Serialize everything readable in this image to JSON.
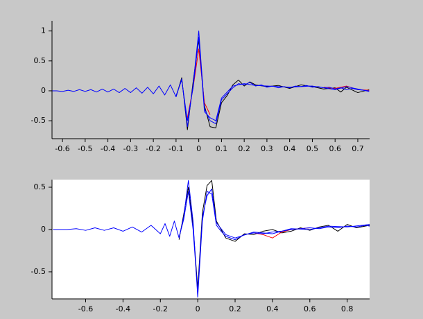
{
  "chart_data": [
    {
      "type": "line",
      "plot_background": "#c8c8c8",
      "xlim": [
        -0.646,
        0.752
      ],
      "ylim": [
        -0.8,
        1.17
      ],
      "xticks": [
        -0.6,
        -0.5,
        -0.4,
        -0.3,
        -0.2,
        -0.1,
        0,
        0.1,
        0.2,
        0.3,
        0.4,
        0.5,
        0.6,
        0.7
      ],
      "yticks": [
        -0.5,
        0,
        0.5,
        1
      ],
      "series": [
        {
          "color": "#000000",
          "x": [
            -0.1,
            -0.075,
            -0.05,
            -0.025,
            0,
            0.025,
            0.05,
            0.075,
            0.1,
            0.125,
            0.15,
            0.175,
            0.2,
            0.225,
            0.25,
            0.3,
            0.35,
            0.4,
            0.45,
            0.5,
            0.55,
            0.6,
            0.625,
            0.65,
            0.7,
            0.75
          ],
          "values": [
            -0.1,
            0.22,
            -0.65,
            0.15,
            0.85,
            -0.25,
            -0.6,
            -0.62,
            -0.2,
            -0.08,
            0.1,
            0.18,
            0.08,
            0.15,
            0.1,
            0.07,
            0.09,
            0.04,
            0.1,
            0.07,
            0.03,
            0.05,
            -0.02,
            0.06,
            -0.03,
            0.02
          ]
        },
        {
          "color": "#ff0000",
          "x": [
            -0.05,
            -0.025,
            0,
            0.025,
            0.05,
            0.3,
            0.55,
            0.6,
            0.65,
            0.7,
            0.75
          ],
          "values": [
            -0.45,
            0.05,
            0.7,
            -0.2,
            -0.4,
            null,
            0.06,
            0.04,
            0.08,
            0.02,
            0.01
          ]
        },
        {
          "color": "#0000ff",
          "x": [
            -0.65,
            -0.625,
            -0.6,
            -0.575,
            -0.55,
            -0.525,
            -0.5,
            -0.475,
            -0.45,
            -0.425,
            -0.4,
            -0.375,
            -0.35,
            -0.325,
            -0.3,
            -0.275,
            -0.25,
            -0.225,
            -0.2,
            -0.175,
            -0.15,
            -0.125,
            -0.1,
            -0.075,
            -0.05,
            -0.025,
            0,
            0.025,
            0.05,
            0.075,
            0.1,
            0.125,
            0.15,
            0.175,
            0.2,
            0.225,
            0.25,
            0.275,
            0.3,
            0.325,
            0.35,
            0.375,
            0.4,
            0.425,
            0.45,
            0.475,
            0.5,
            0.525,
            0.55,
            0.575,
            0.6,
            0.625,
            0.65,
            0.675,
            0.7,
            0.725,
            0.75
          ],
          "values": [
            0,
            0,
            -0.01,
            0.01,
            -0.01,
            0.02,
            -0.01,
            0.02,
            -0.02,
            0.03,
            -0.02,
            0.03,
            -0.03,
            0.04,
            -0.03,
            0.05,
            -0.04,
            0.06,
            -0.05,
            0.08,
            -0.07,
            0.1,
            -0.1,
            0.2,
            -0.6,
            0.1,
            1.0,
            -0.3,
            -0.5,
            -0.55,
            -0.15,
            -0.05,
            0.05,
            0.12,
            0.1,
            0.14,
            0.08,
            0.1,
            0.06,
            0.08,
            0.05,
            0.07,
            0.05,
            0.08,
            0.07,
            0.09,
            0.06,
            0.07,
            0.05,
            0.06,
            0.03,
            0.05,
            0.02,
            0.04,
            0.02,
            0.01,
            0
          ]
        },
        {
          "color": "#0000ff",
          "x": [
            -0.1,
            -0.075,
            -0.05,
            -0.025,
            0,
            0.025,
            0.05,
            0.075,
            0.1,
            0.15,
            0.2,
            0.25,
            0.3,
            0.4,
            0.5,
            0.6,
            0.65,
            0.7,
            0.75
          ],
          "values": [
            -0.08,
            0.18,
            -0.5,
            0.05,
            0.9,
            -0.35,
            -0.45,
            -0.5,
            -0.12,
            0.08,
            0.12,
            0.09,
            0.08,
            0.06,
            0.08,
            0.02,
            0.07,
            0.03,
            -0.01
          ]
        }
      ]
    },
    {
      "type": "line",
      "plot_background": "#ffffff",
      "xlim": [
        -0.78,
        0.92
      ],
      "ylim": [
        -0.82,
        0.59
      ],
      "xticks": [
        -0.6,
        -0.4,
        -0.2,
        0,
        0.2,
        0.4,
        0.6,
        0.8
      ],
      "yticks": [
        -0.5,
        0,
        0.5
      ],
      "series": [
        {
          "color": "#000000",
          "x": [
            -0.1,
            -0.075,
            -0.05,
            -0.025,
            0,
            0.025,
            0.05,
            0.075,
            0.1,
            0.125,
            0.15,
            0.2,
            0.25,
            0.3,
            0.35,
            0.4,
            0.45,
            0.5,
            0.55,
            0.6,
            0.65,
            0.7,
            0.75,
            0.8,
            0.85,
            0.92
          ],
          "values": [
            -0.12,
            0.18,
            0.5,
            0.05,
            -0.7,
            0.2,
            0.52,
            0.58,
            0.1,
            0,
            -0.1,
            -0.14,
            -0.05,
            -0.06,
            -0.02,
            0,
            -0.04,
            -0.02,
            0.02,
            -0.01,
            0.03,
            0.05,
            -0.02,
            0.06,
            0.02,
            0.05
          ]
        },
        {
          "color": "#ff0000",
          "x": [
            0.3,
            0.35,
            0.4,
            0.45,
            0.5,
            0.55,
            0.6
          ],
          "values": [
            -0.04,
            -0.06,
            -0.1,
            -0.03,
            0,
            0.01,
            0.02
          ]
        },
        {
          "color": "#0000ff",
          "x": [
            -0.775,
            -0.75,
            -0.7,
            -0.65,
            -0.6,
            -0.55,
            -0.5,
            -0.45,
            -0.4,
            -0.35,
            -0.3,
            -0.25,
            -0.2,
            -0.175,
            -0.15,
            -0.125,
            -0.1,
            -0.075,
            -0.05,
            -0.025,
            0,
            0.025,
            0.05,
            0.075,
            0.1,
            0.125,
            0.15,
            0.2,
            0.25,
            0.3,
            0.35,
            0.4,
            0.45,
            0.5,
            0.55,
            0.6,
            0.65,
            0.7,
            0.75,
            0.8,
            0.85,
            0.9,
            0.92
          ],
          "values": [
            0,
            0,
            0,
            0.01,
            -0.01,
            0.02,
            -0.01,
            0.02,
            -0.02,
            0.03,
            -0.03,
            0.05,
            -0.05,
            0.07,
            -0.08,
            0.1,
            -0.1,
            0.15,
            0.58,
            0.1,
            -0.8,
            0.1,
            0.45,
            0.42,
            0.05,
            -0.02,
            -0.08,
            -0.12,
            -0.06,
            -0.04,
            -0.05,
            -0.03,
            -0.02,
            0,
            0.01,
            0.02,
            0.01,
            0.03,
            0.02,
            0.04,
            0.03,
            0.05,
            0.04
          ]
        },
        {
          "color": "#0000ff",
          "x": [
            -0.1,
            -0.075,
            -0.05,
            -0.025,
            0,
            0.025,
            0.05,
            0.075,
            0.1,
            0.15,
            0.2,
            0.3,
            0.4,
            0.5,
            0.6,
            0.7,
            0.8,
            0.92
          ],
          "values": [
            -0.09,
            0.12,
            0.45,
            0.0,
            -0.75,
            0.15,
            0.4,
            0.48,
            0.08,
            -0.06,
            -0.1,
            -0.03,
            -0.05,
            0.01,
            0.0,
            0.04,
            0.03,
            0.06
          ]
        }
      ]
    }
  ]
}
